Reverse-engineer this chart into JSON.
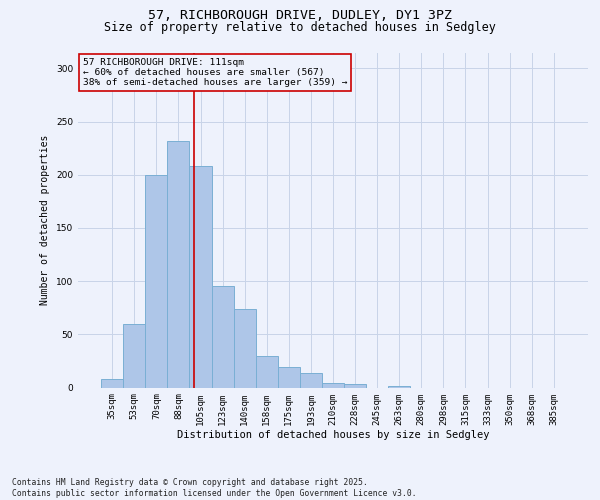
{
  "title_line1": "57, RICHBOROUGH DRIVE, DUDLEY, DY1 3PZ",
  "title_line2": "Size of property relative to detached houses in Sedgley",
  "xlabel": "Distribution of detached houses by size in Sedgley",
  "ylabel": "Number of detached properties",
  "categories": [
    "35sqm",
    "53sqm",
    "70sqm",
    "88sqm",
    "105sqm",
    "123sqm",
    "140sqm",
    "158sqm",
    "175sqm",
    "193sqm",
    "210sqm",
    "228sqm",
    "245sqm",
    "263sqm",
    "280sqm",
    "298sqm",
    "315sqm",
    "333sqm",
    "350sqm",
    "368sqm",
    "385sqm"
  ],
  "values": [
    8,
    60,
    200,
    232,
    208,
    95,
    74,
    30,
    19,
    14,
    4,
    3,
    0,
    1,
    0,
    0,
    0,
    0,
    0,
    0,
    0
  ],
  "bar_color": "#aec6e8",
  "bar_edge_color": "#7aafd4",
  "grid_color": "#c8d4e8",
  "background_color": "#eef2fc",
  "annotation_box_color": "#cc0000",
  "vline_color": "#cc0000",
  "vline_x_index": 3.72,
  "annotation_text": "57 RICHBOROUGH DRIVE: 111sqm\n← 60% of detached houses are smaller (567)\n38% of semi-detached houses are larger (359) →",
  "ylim": [
    0,
    315
  ],
  "yticks": [
    0,
    50,
    100,
    150,
    200,
    250,
    300
  ],
  "footer": "Contains HM Land Registry data © Crown copyright and database right 2025.\nContains public sector information licensed under the Open Government Licence v3.0.",
  "title_fontsize": 9.5,
  "subtitle_fontsize": 8.5,
  "annotation_fontsize": 6.8,
  "footer_fontsize": 5.8,
  "ylabel_fontsize": 7,
  "xlabel_fontsize": 7.5,
  "tick_fontsize": 6.5
}
